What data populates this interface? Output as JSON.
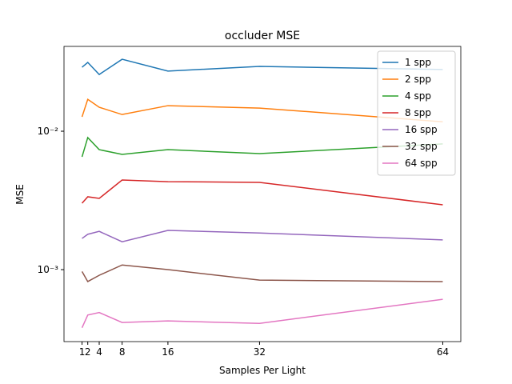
{
  "chart_data": {
    "type": "line",
    "title": "occluder MSE",
    "x_label": "Samples Per Light",
    "y_label": "MSE",
    "x": [
      1,
      2,
      4,
      8,
      16,
      32,
      64
    ],
    "xlim": [
      -2.15,
      67.15
    ],
    "xticks": [
      1,
      2,
      4,
      8,
      16,
      32,
      64
    ],
    "ylim": [
      0.000302,
      0.041
    ],
    "yticks": [
      {
        "value": 0.001,
        "label": "10⁻³"
      },
      {
        "value": 0.01,
        "label": "10⁻²"
      }
    ],
    "log_y": true,
    "grid": false,
    "legend": "upper right",
    "series": [
      {
        "name": "1 spp",
        "color": "#1f77b4",
        "values": [
          0.029,
          0.0314,
          0.0257,
          0.0331,
          0.0272,
          0.0294,
          0.0279
        ]
      },
      {
        "name": "2 spp",
        "color": "#ff7f0e",
        "values": [
          0.0127,
          0.017,
          0.0149,
          0.0132,
          0.0153,
          0.0147,
          0.0117
        ]
      },
      {
        "name": "4 spp",
        "color": "#2ca02c",
        "values": [
          0.00653,
          0.009,
          0.00736,
          0.0068,
          0.00736,
          0.00689,
          0.0081
        ]
      },
      {
        "name": "8 spp",
        "color": "#d62728",
        "values": [
          0.00302,
          0.00336,
          0.00327,
          0.00444,
          0.00432,
          0.00427,
          0.00294
        ]
      },
      {
        "name": "16 spp",
        "color": "#9467bd",
        "values": [
          0.00168,
          0.0018,
          0.00189,
          0.00159,
          0.00192,
          0.00184,
          0.00164
        ]
      },
      {
        "name": "32 spp",
        "color": "#8c564b",
        "values": [
          0.00097,
          0.00082,
          0.00091,
          0.00108,
          0.001,
          0.00084,
          0.00082
        ]
      },
      {
        "name": "64 spp",
        "color": "#e377c2",
        "values": [
          0.00038,
          0.00047,
          0.00049,
          0.000415,
          0.000426,
          0.000409,
          0.00061
        ]
      }
    ]
  }
}
